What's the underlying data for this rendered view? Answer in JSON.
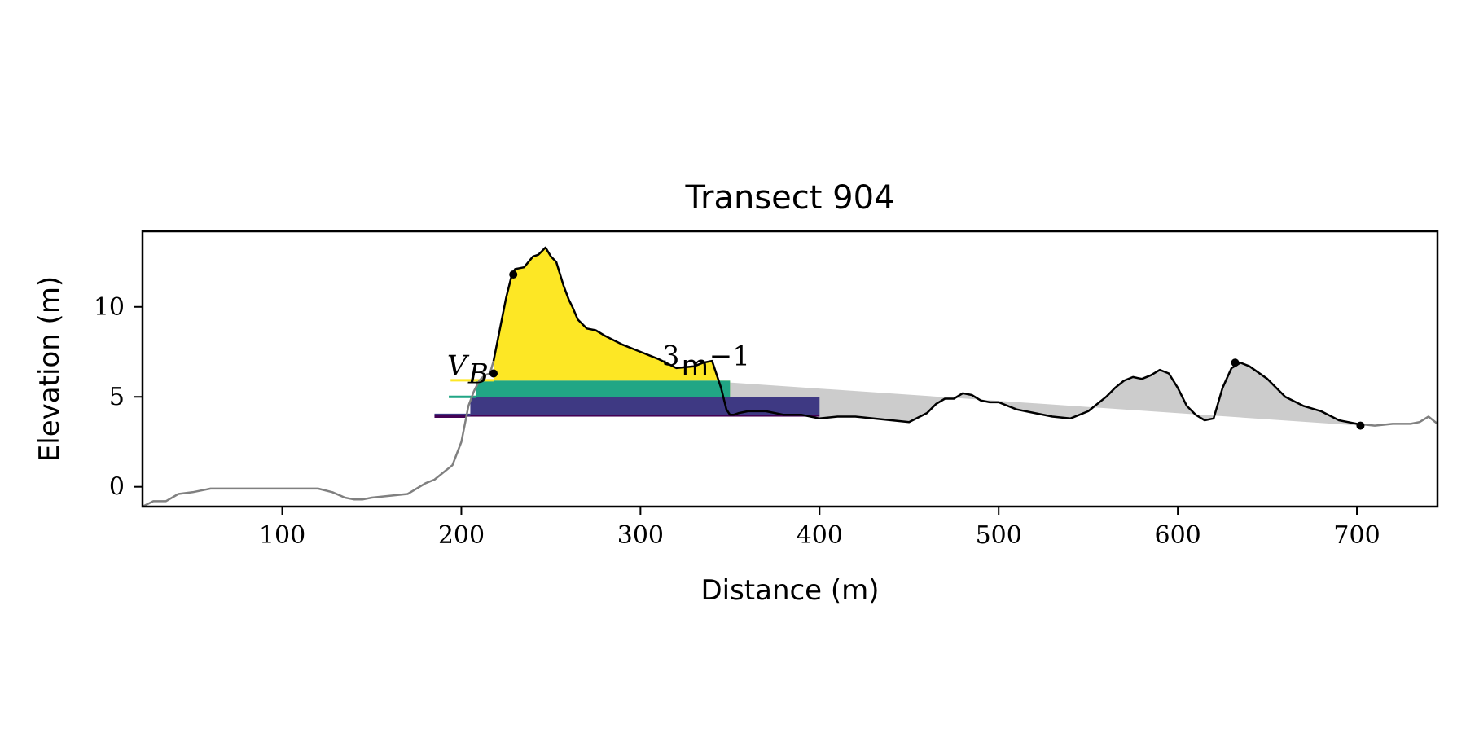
{
  "chart_data": {
    "type": "area",
    "title": "Transect 904",
    "xlabel": "Distance (m)",
    "ylabel": "Elevation (m)",
    "xlim": [
      22,
      745
    ],
    "ylim": [
      -1.1,
      14.2
    ],
    "xticks": [
      "100",
      "200",
      "300",
      "400",
      "500",
      "600",
      "700"
    ],
    "yticks": [
      "0",
      "5",
      "10"
    ],
    "grid": false,
    "legend": "none",
    "annotation": {
      "parts": [
        "V",
        "B",
        "3",
        "m",
        "−1"
      ],
      "x": 192,
      "y": 6.2
    },
    "profile": {
      "x": [
        22,
        28,
        35,
        42,
        50,
        60,
        70,
        80,
        90,
        100,
        110,
        120,
        128,
        135,
        140,
        145,
        150,
        160,
        170,
        180,
        185,
        190,
        195,
        200,
        204,
        207,
        210,
        213,
        216,
        218,
        222,
        225,
        228,
        230,
        235,
        240,
        243,
        247,
        250,
        253,
        257,
        260,
        262,
        265,
        270,
        275,
        280,
        290,
        300,
        310,
        320,
        330,
        335,
        340,
        345,
        348,
        350,
        352,
        355,
        360,
        370,
        380,
        390,
        400,
        410,
        420,
        430,
        440,
        450,
        460,
        465,
        470,
        475,
        480,
        485,
        490,
        495,
        500,
        510,
        520,
        530,
        540,
        550,
        560,
        565,
        570,
        575,
        580,
        585,
        590,
        595,
        600,
        605,
        610,
        615,
        620,
        625,
        630,
        635,
        640,
        650,
        660,
        670,
        680,
        690,
        700,
        710,
        720,
        730,
        735,
        740,
        745
      ],
      "y": [
        -1.1,
        -0.8,
        -0.8,
        -0.4,
        -0.3,
        -0.1,
        -0.1,
        -0.1,
        -0.1,
        -0.1,
        -0.1,
        -0.1,
        -0.3,
        -0.6,
        -0.7,
        -0.7,
        -0.6,
        -0.5,
        -0.4,
        0.2,
        0.4,
        0.8,
        1.2,
        2.5,
        4.5,
        5.3,
        5.9,
        6.2,
        6.3,
        7.0,
        9.0,
        10.5,
        11.7,
        12.1,
        12.2,
        12.8,
        12.9,
        13.3,
        12.8,
        12.5,
        11.2,
        10.4,
        10.0,
        9.3,
        8.8,
        8.7,
        8.4,
        7.9,
        7.5,
        7.1,
        6.6,
        6.7,
        6.9,
        7.0,
        5.5,
        4.3,
        4.0,
        4.0,
        4.1,
        4.2,
        4.2,
        4.0,
        4.0,
        3.8,
        3.9,
        3.9,
        3.8,
        3.7,
        3.6,
        4.1,
        4.6,
        4.9,
        4.9,
        5.2,
        5.1,
        4.8,
        4.7,
        4.7,
        4.3,
        4.1,
        3.9,
        3.8,
        4.2,
        5.0,
        5.5,
        5.9,
        6.1,
        6.0,
        6.2,
        6.5,
        6.3,
        5.5,
        4.5,
        4.0,
        3.7,
        3.8,
        5.5,
        6.6,
        6.9,
        6.7,
        6.0,
        5.0,
        4.5,
        4.2,
        3.7,
        3.5,
        3.4,
        3.5,
        3.5,
        3.6,
        3.9,
        3.5
      ]
    },
    "markers": [
      {
        "x": 218,
        "y": 6.3
      },
      {
        "x": 229,
        "y": 11.8
      },
      {
        "x": 632,
        "y": 6.9
      },
      {
        "x": 702,
        "y": 3.4
      }
    ],
    "baseline": {
      "x": [
        350,
        702
      ],
      "y": [
        5.8,
        3.4
      ]
    },
    "bands": [
      {
        "x": [
          208,
          350
        ],
        "y": [
          5.0,
          5.9
        ],
        "color": "#21a685",
        "line_x": [
          193,
          208
        ]
      },
      {
        "x": [
          205,
          400
        ],
        "y": [
          4.0,
          5.0
        ],
        "color": "#3e3983",
        "line_x": [
          185,
          205
        ]
      },
      {
        "x": [
          203,
          400
        ],
        "y": [
          3.9,
          4.0
        ],
        "color": "#440154",
        "line_x": [
          185,
          203
        ]
      }
    ],
    "upper_fill": {
      "x": [
        218,
        350
      ],
      "baseline": 5.9,
      "color": "#fde725",
      "line_x": [
        194,
        218
      ]
    },
    "colors": {
      "dune": "#fde725",
      "band1": "#21a685",
      "band2": "#3e3983",
      "band3": "#440154",
      "shadow": "#cccccc",
      "profile_gray": "#808080",
      "profile_black": "#000000"
    }
  }
}
